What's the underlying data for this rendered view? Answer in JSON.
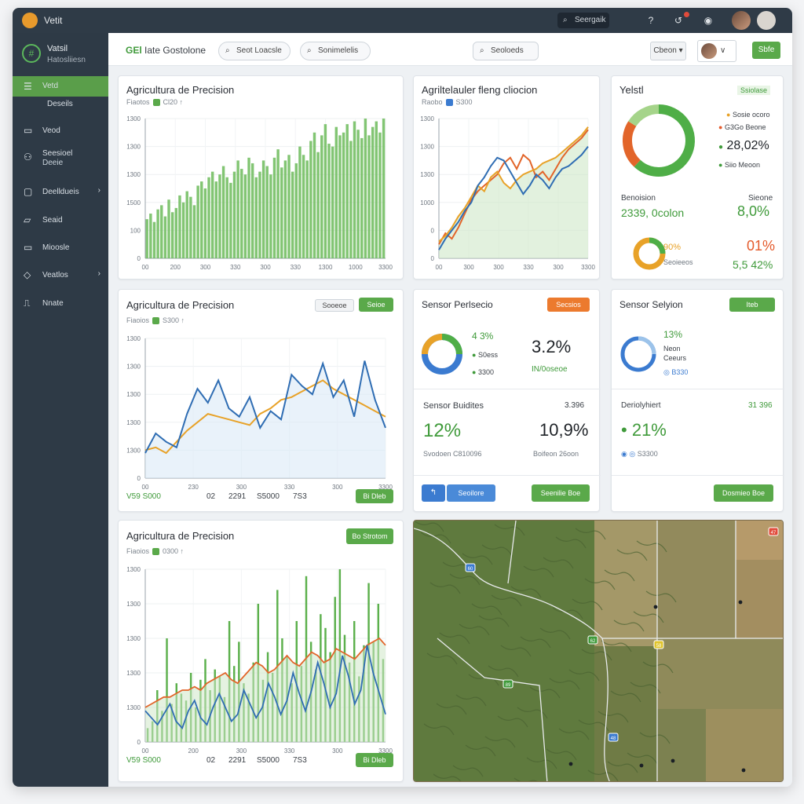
{
  "app": {
    "title": "Vetit"
  },
  "topbar": {
    "search_label": "Seergaik"
  },
  "sidebar": {
    "brand_title": "Vatsil",
    "brand_sub": "Hatosliiesn",
    "items": [
      {
        "label": "Vetd",
        "sub": "Deseils",
        "icon": "list-icon"
      },
      {
        "label": "Veod",
        "icon": "folder-icon"
      },
      {
        "label": "Seesioel",
        "sub": "Deeie",
        "icon": "users-icon"
      },
      {
        "label": "Deelldueis",
        "icon": "grid-icon",
        "chevron": "›"
      },
      {
        "label": "Seaid",
        "icon": "folder-icon"
      },
      {
        "label": "Mioosle",
        "icon": "monitor-icon"
      },
      {
        "label": "Veatlos",
        "icon": "tag-icon",
        "chevron": "›"
      },
      {
        "label": "Nnate",
        "icon": "chart-icon"
      }
    ]
  },
  "toolbar": {
    "title_bold": "GEl",
    "title_rest": "Iate Gostolone",
    "filter1": "Seot Loacsle",
    "filter2": "Sonimelelis",
    "search": "Seoloeds",
    "select": "Cbeon",
    "action": "Sbfe"
  },
  "card1": {
    "title": "Agricultura de Precision",
    "sub_a": "Fiaotos",
    "sub_b": "Cl20",
    "chart_data": {
      "type": "bar",
      "ylabels": [
        "1300",
        "1300",
        "1300",
        "1500",
        "100",
        "0"
      ],
      "xlabels": [
        "00",
        "200",
        "300",
        "330",
        "300",
        "330",
        "1300",
        "1000",
        "3300"
      ],
      "values": [
        28,
        32,
        26,
        35,
        38,
        30,
        42,
        33,
        36,
        45,
        40,
        48,
        44,
        38,
        52,
        55,
        50,
        58,
        62,
        55,
        60,
        66,
        58,
        54,
        62,
        70,
        64,
        60,
        72,
        68,
        58,
        62,
        70,
        66,
        60,
        72,
        78,
        65,
        70,
        74,
        62,
        68,
        80,
        74,
        70,
        84,
        90,
        76,
        88,
        96,
        82,
        80,
        94,
        88,
        90,
        96,
        84,
        98,
        92,
        86,
        100,
        88,
        94,
        98,
        90,
        100
      ]
    }
  },
  "card2": {
    "title": "Agriltelauler fleng cliocion",
    "sub_a": "Raobo",
    "sub_b": "S300",
    "chart_data": {
      "type": "line",
      "ylabels": [
        "1300",
        "1300",
        "1300",
        "1000",
        "0",
        "0"
      ],
      "xlabels": [
        "00",
        "300",
        "300",
        "330",
        "300",
        "3300"
      ],
      "series": [
        {
          "values": [
            10,
            18,
            14,
            22,
            32,
            42,
            48,
            52,
            56,
            60,
            68,
            72,
            64,
            74,
            70,
            58,
            62,
            56,
            64,
            72,
            78,
            82,
            86,
            92
          ]
        },
        {
          "values": [
            12,
            16,
            22,
            30,
            36,
            44,
            52,
            48,
            58,
            62,
            54,
            50,
            56,
            60,
            62,
            64,
            68,
            70,
            72,
            76,
            80,
            84,
            88,
            94
          ]
        },
        {
          "values": [
            6,
            14,
            20,
            26,
            34,
            40,
            52,
            58,
            66,
            72,
            70,
            62,
            54,
            46,
            52,
            60,
            56,
            50,
            58,
            64,
            66,
            70,
            74,
            80
          ]
        }
      ]
    }
  },
  "card3": {
    "title": "Yelstl",
    "badge": "Ssiolase",
    "legend": [
      "Sosie ocoro",
      "G3Go Beone",
      "Siio Meoon"
    ],
    "legend_value": "28,02%",
    "donut_big": [
      0.62,
      0.22,
      0.16
    ],
    "row_label_left": "Benoision",
    "row_label_right": "Sieone",
    "value_left": "2339, 0colon",
    "value_right": "8,0%",
    "donut_small_a": "90%",
    "donut_small_b": "Seoieeos",
    "value_right2": "01%",
    "value_right3": "5,5 42%"
  },
  "card4": {
    "title": "Agricultura de Precision",
    "sub_a": "Fiaoios",
    "sub_b": "S300",
    "tab_grey": "Sooeoe",
    "tab_green": "Seioe",
    "footer_left": "V59 S000",
    "footer_vals": [
      "02",
      "2291",
      "S5000",
      "7S3"
    ],
    "footer_btn": "Bi Dleb",
    "chart_data": {
      "type": "line",
      "ylabels": [
        "1300",
        "1300",
        "1300",
        "1300",
        "1300",
        "0"
      ],
      "xlabels": [
        "00",
        "230",
        "300",
        "330",
        "300",
        "3300"
      ],
      "series": [
        {
          "values": [
            20,
            22,
            18,
            26,
            34,
            40,
            46,
            44,
            42,
            40,
            38,
            46,
            50,
            56,
            58,
            62,
            66,
            70,
            64,
            60,
            56,
            52,
            48,
            44
          ]
        },
        {
          "values": [
            18,
            32,
            26,
            22,
            46,
            64,
            54,
            70,
            50,
            44,
            58,
            36,
            48,
            42,
            74,
            66,
            60,
            82,
            58,
            70,
            44,
            84,
            56,
            36
          ]
        }
      ]
    }
  },
  "card5": {
    "title": "Sensor Perlsecio",
    "badge": "Secsios",
    "donut_pct": "4 3%",
    "donut_label_a": "S0ess",
    "donut_label_b": "3300",
    "headline": "3.2%",
    "headline_sub": "0oseoe",
    "row_title": "Sensor Buidites",
    "row_value": "3.396",
    "big_left": "12%",
    "big_right": "10,9%",
    "foot_left": "Svodoen C810096",
    "foot_right": "Boifeon 26oon",
    "btn_blue": "Seoilore",
    "btn_green": "Seenilie Boe"
  },
  "card6": {
    "title": "Sensor Selyion",
    "badge": "Iteb",
    "donut_pct": "13%",
    "donut_a": "Neon",
    "donut_b": "Ceeurs",
    "donut_c": "B330",
    "row_title": "Deriolyhiert",
    "row_value": "31 396",
    "big_value": "21%",
    "foot": "S3300",
    "btn": "Dosmieo Boe"
  },
  "card7": {
    "title": "Agricultura de Precision",
    "sub_a": "Fiaoios",
    "sub_b": "0300",
    "badge": "Bo Strotom",
    "footer_left": "V59 S000",
    "footer_vals": [
      "02",
      "2291",
      "S5000",
      "7S3"
    ],
    "footer_btn": "Bi Dleb",
    "chart_data": {
      "type": "bar",
      "ylabels": [
        "1300",
        "1300",
        "1300",
        "1300",
        "1300",
        "0"
      ],
      "xlabels": [
        "00",
        "200",
        "300",
        "330",
        "300",
        "3300"
      ],
      "bars": [
        8,
        12,
        30,
        18,
        60,
        22,
        34,
        28,
        24,
        40,
        20,
        36,
        48,
        30,
        42,
        38,
        26,
        70,
        44,
        58,
        34,
        28,
        46,
        80,
        36,
        52,
        40,
        88,
        60,
        50,
        34,
        70,
        44,
        96,
        58,
        42,
        74,
        66,
        52,
        84,
        100,
        62,
        46,
        70,
        38,
        56,
        92,
        58,
        80,
        48
      ],
      "line_orange": [
        20,
        22,
        24,
        26,
        26,
        28,
        30,
        30,
        32,
        30,
        34,
        36,
        38,
        40,
        36,
        34,
        38,
        42,
        46,
        44,
        40,
        42,
        46,
        50,
        46,
        44,
        48,
        52,
        50,
        46,
        48,
        54,
        52,
        50,
        48,
        52,
        56,
        58,
        60,
        56
      ],
      "line_blue": [
        18,
        14,
        10,
        16,
        22,
        12,
        8,
        18,
        24,
        14,
        10,
        20,
        28,
        20,
        12,
        16,
        30,
        22,
        14,
        20,
        34,
        26,
        16,
        24,
        40,
        28,
        18,
        30,
        46,
        34,
        20,
        28,
        50,
        38,
        22,
        30,
        56,
        40,
        28,
        16
      ]
    }
  },
  "map": {
    "marker_labels": [
      "60",
      "62",
      "58",
      "89",
      "48",
      "47"
    ]
  }
}
